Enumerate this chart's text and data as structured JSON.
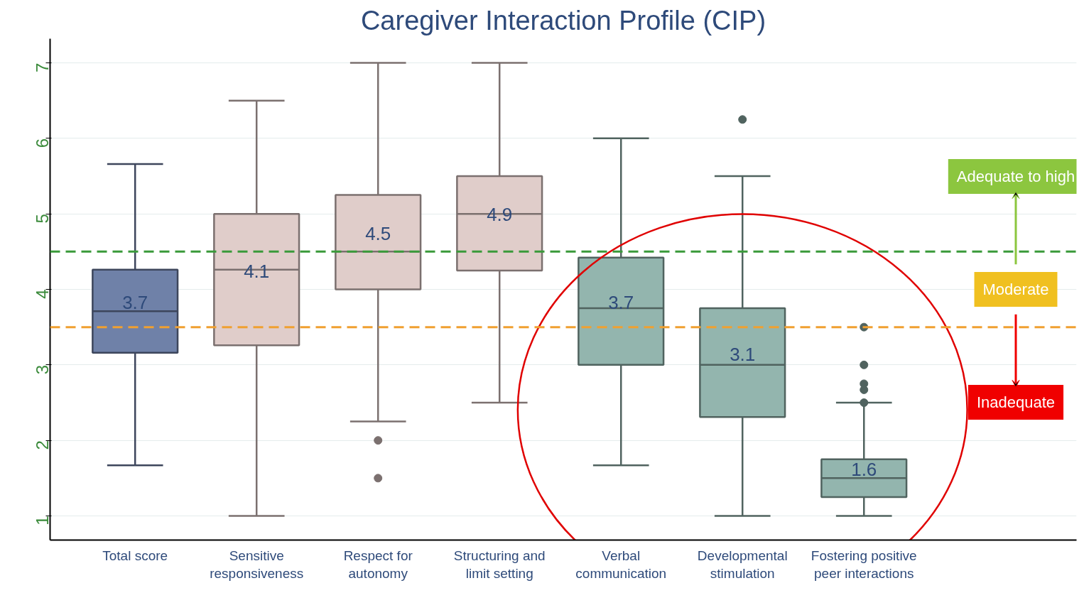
{
  "chart_data": {
    "type": "box",
    "title": "Caregiver Interaction Profile (CIP)",
    "categories": [
      "Total score",
      "Sensitive responsiveness",
      "Respect for autonomy",
      "Structuring and limit setting",
      "Verbal communication",
      "Developmental stimulation",
      "Fostering positive peer interactions"
    ],
    "boxes": [
      {
        "low": 1.67,
        "q1": 3.16,
        "median": 3.71,
        "q3": 4.26,
        "high": 5.66
      },
      {
        "low": 1.0,
        "q1": 3.26,
        "median": 4.26,
        "q3": 5.0,
        "high": 6.5
      },
      {
        "low": 2.25,
        "q1": 4.0,
        "median": 4.5,
        "q3": 5.25,
        "high": 7.0,
        "outliers": [
          2.0,
          1.5
        ]
      },
      {
        "low": 2.5,
        "q1": 4.25,
        "median": 5.0,
        "q3": 5.5,
        "high": 7.0
      },
      {
        "low": 1.67,
        "q1": 3.0,
        "median": 3.75,
        "q3": 4.42,
        "high": 6.0
      },
      {
        "low": 1.0,
        "q1": 2.31,
        "median": 3.0,
        "q3": 3.75,
        "high": 5.5,
        "outliers": [
          6.25
        ]
      },
      {
        "low": 1.0,
        "q1": 1.25,
        "median": 1.5,
        "q3": 1.75,
        "high": 2.5,
        "outliers": [
          3.5,
          3.0,
          2.75,
          2.67,
          2.5
        ]
      }
    ],
    "colors": [
      "#6f81a8",
      "#e0cdca",
      "#e0cdca",
      "#e0cdca",
      "#93b5ae",
      "#93b5ae",
      "#93b5ae"
    ],
    "ylim": [
      0.68,
      7.32
    ],
    "yticks": [
      1,
      2,
      3,
      4,
      5,
      6,
      7
    ],
    "grid": "y",
    "ref_lines": [
      {
        "axis": "y",
        "value": 4.5,
        "color": "#3a9a3a",
        "line_style": "dashed"
      },
      {
        "axis": "y",
        "value": 3.5,
        "color": "#f0a030",
        "line_style": "dashed"
      }
    ],
    "annotations": [
      "3.7",
      "4.1",
      "4.5",
      "4.9",
      "3.7",
      "3.1",
      "1.6",
      "Adequate to high",
      "Moderate",
      "Inadequate"
    ]
  }
}
